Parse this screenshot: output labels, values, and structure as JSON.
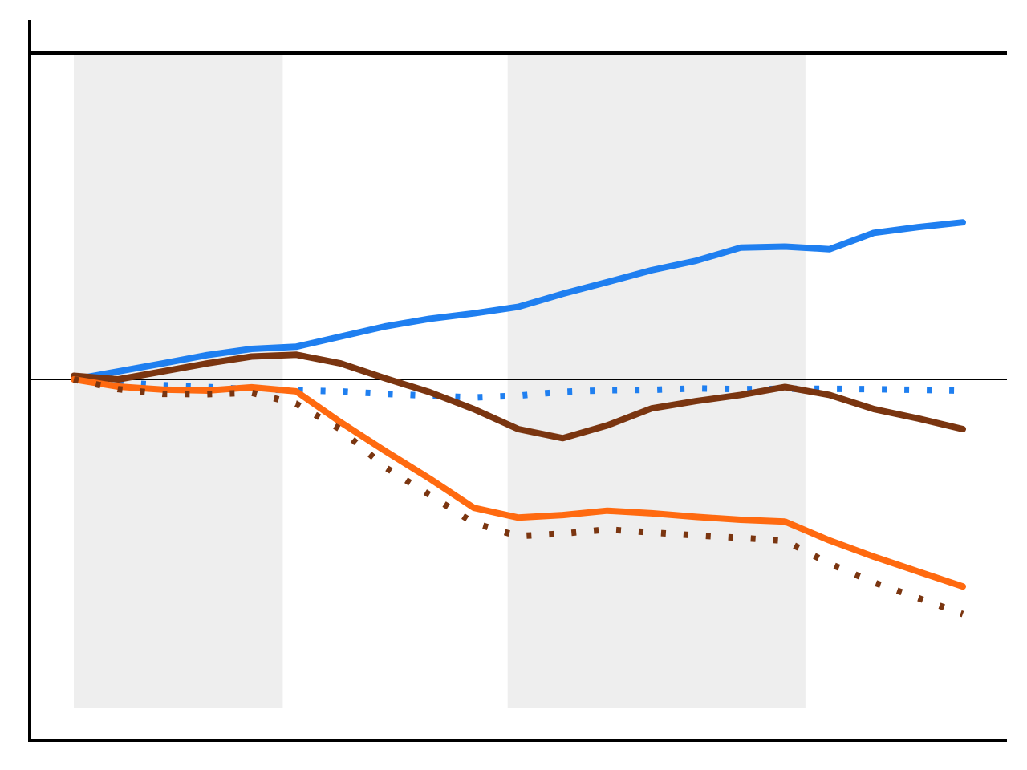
{
  "chart_data": {
    "type": "line",
    "title": "",
    "xlabel": "",
    "ylabel": "",
    "xlim": [
      0,
      100
    ],
    "ylim": [
      -100,
      100
    ],
    "grid": false,
    "legend": "none",
    "shaded_x_bands": [
      [
        0,
        23.5
      ],
      [
        48.8,
        82.3
      ]
    ],
    "horizontal_reference_lines": [
      0,
      90
    ],
    "x": [
      0,
      5,
      10,
      15,
      20,
      25,
      30,
      35,
      40,
      45,
      50,
      55,
      60,
      65,
      70,
      75,
      80,
      85,
      90,
      95,
      100
    ],
    "series": [
      {
        "color": "#1f7ff0",
        "style": "solid",
        "values": [
          0,
          2.2,
          4.4,
          6.7,
          8.4,
          9.0,
          11.8,
          14.6,
          16.7,
          18.2,
          20.0,
          23.6,
          26.8,
          30.1,
          32.7,
          36.3,
          36.6,
          35.9,
          40.4,
          42.0,
          43.3
        ]
      },
      {
        "color": "#1f7ff0",
        "style": "dotted",
        "values": [
          0,
          -0.8,
          -1.6,
          -2.1,
          -2.7,
          -3.0,
          -3.3,
          -4.0,
          -4.5,
          -5.0,
          -4.5,
          -3.4,
          -3.0,
          -2.9,
          -2.5,
          -2.7,
          -2.6,
          -2.6,
          -2.7,
          -2.9,
          -3.1
        ]
      },
      {
        "color": "#7a3510",
        "style": "solid",
        "values": [
          1,
          0,
          2.2,
          4.4,
          6.3,
          6.8,
          4.4,
          0.3,
          -3.5,
          -8.2,
          -13.7,
          -16.2,
          -12.7,
          -8.0,
          -6.0,
          -4.3,
          -2.1,
          -4.3,
          -8.2,
          -10.8,
          -13.7
        ]
      },
      {
        "color": "#ff6a10",
        "style": "solid",
        "values": [
          0,
          -2.0,
          -2.8,
          -3.1,
          -2.2,
          -3.3,
          -11.8,
          -19.7,
          -27.3,
          -35.4,
          -38.1,
          -37.4,
          -36.2,
          -36.9,
          -37.9,
          -38.7,
          -39.2,
          -44.4,
          -48.9,
          -53.0,
          -57.1
        ]
      },
      {
        "color": "#7a3510",
        "style": "dotted",
        "values": [
          0,
          -2.7,
          -4.0,
          -4.1,
          -3.7,
          -6.7,
          -13.8,
          -24.2,
          -31.8,
          -39.6,
          -43.2,
          -42.5,
          -41.4,
          -42.2,
          -43.0,
          -43.7,
          -44.5,
          -50.8,
          -56.0,
          -60.3,
          -64.7
        ]
      }
    ]
  }
}
